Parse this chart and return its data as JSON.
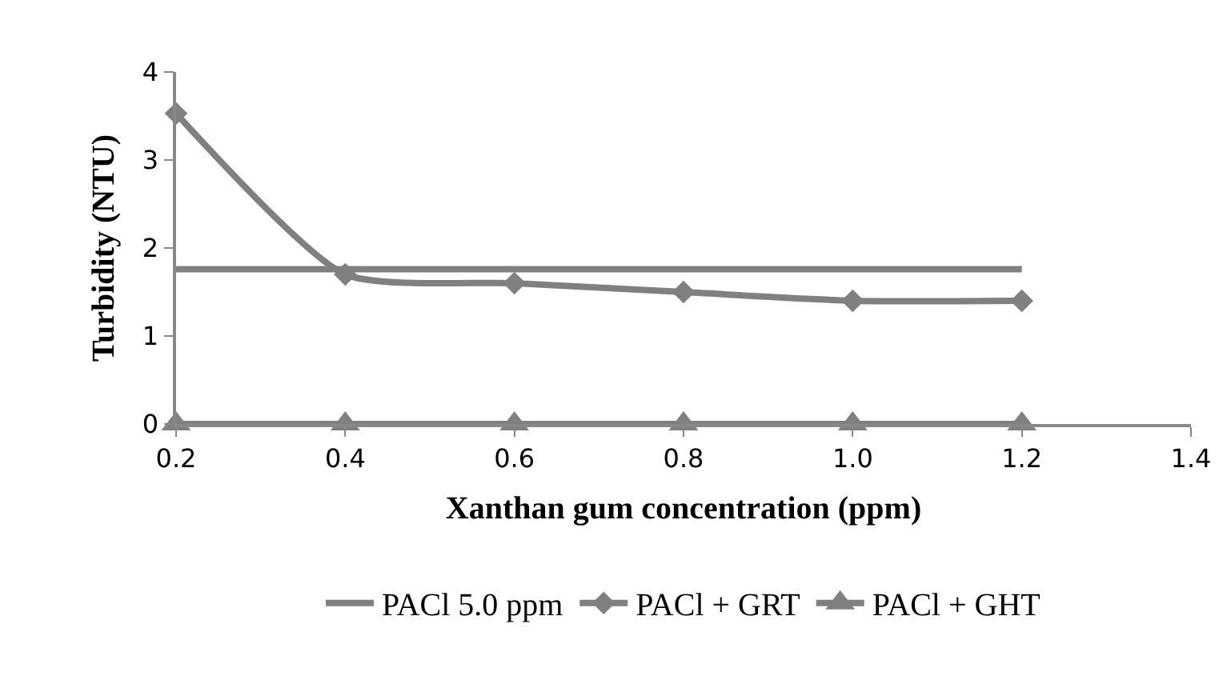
{
  "chart_data": {
    "type": "line",
    "xlabel": "Xanthan gum concentration (ppm)",
    "ylabel": "Turbidity (NTU)",
    "x": [
      0.2,
      0.4,
      0.6,
      0.8,
      1.0,
      1.2
    ],
    "xlim": [
      0.2,
      1.4
    ],
    "xticks": [
      0.2,
      0.4,
      0.6,
      0.8,
      {
        "value": 1.0,
        "label": "1.0"
      },
      1.2,
      1.4
    ],
    "ylim": [
      0,
      4
    ],
    "yticks": [
      0,
      1,
      2,
      3,
      4
    ],
    "legend": "bottom",
    "line_style": "solid",
    "series": [
      {
        "name": "PACl 5.0 ppm",
        "color": "#808080",
        "marker": "none",
        "values": [
          1.76,
          1.76,
          1.76,
          1.76,
          1.76,
          1.76
        ]
      },
      {
        "name": "PACl + GRT",
        "color": "#808080",
        "marker": "diamond",
        "values": [
          3.53,
          1.7,
          1.6,
          1.5,
          1.4,
          1.4
        ]
      },
      {
        "name": "PACl + GHT",
        "color": "#808080",
        "marker": "triangle",
        "values": [
          0,
          0,
          0,
          0,
          0,
          0
        ]
      }
    ]
  }
}
